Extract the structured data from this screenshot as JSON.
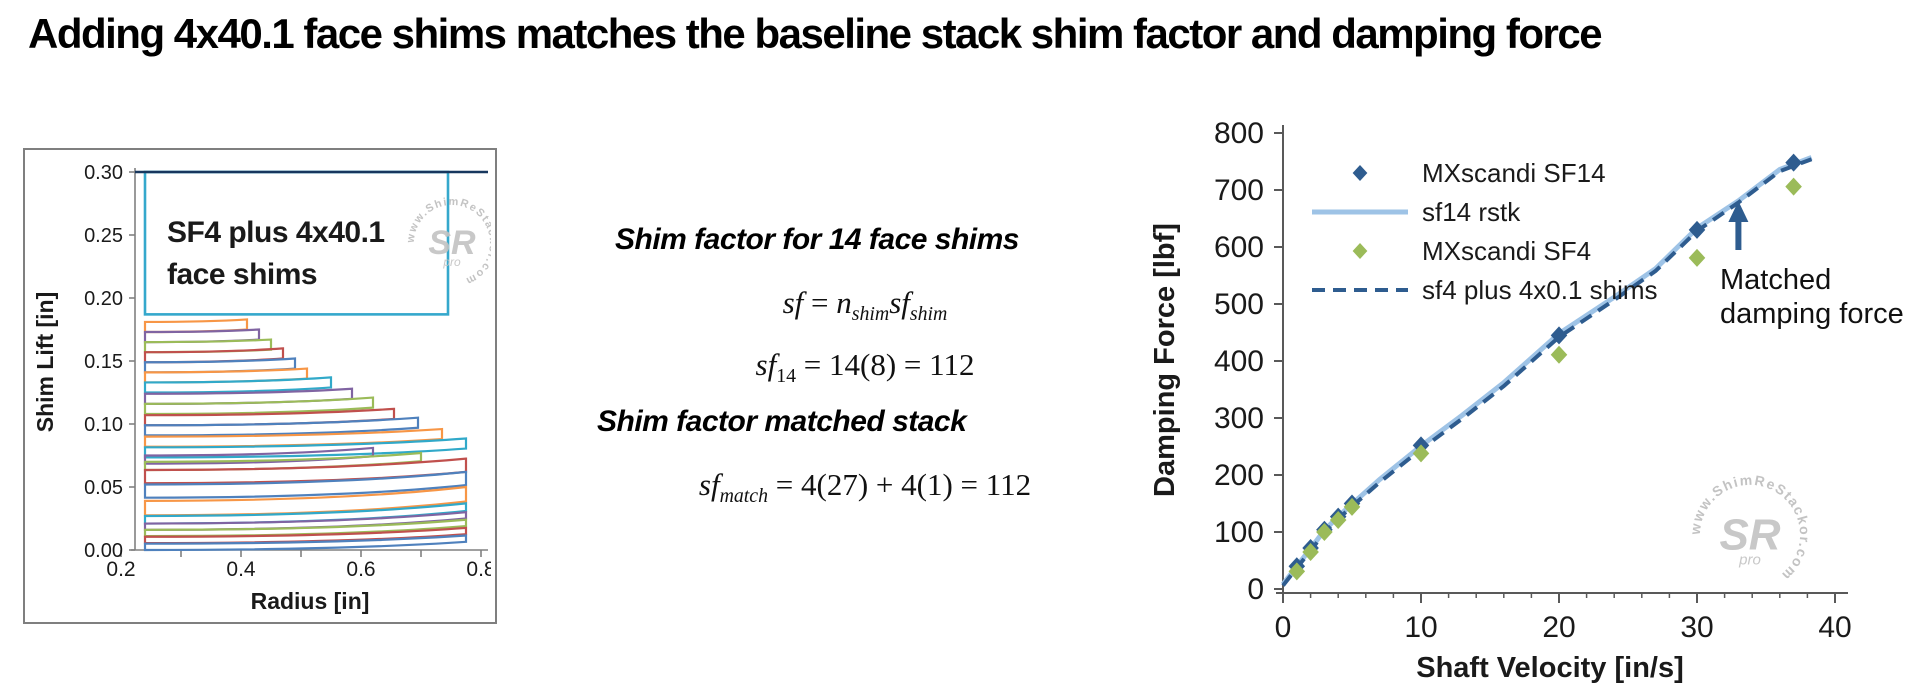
{
  "title": "Adding 4x40.1 face shims matches the baseline stack shim factor and damping force",
  "middle": {
    "heading1": "Shim factor for 14 face shims",
    "heading2": "Shim factor matched stack",
    "formula1": [
      {
        "t": "sf",
        "i": true
      },
      {
        "t": " = "
      },
      {
        "t": "n",
        "i": true
      },
      {
        "t": "shim",
        "i": true,
        "sub": true
      },
      {
        "t": "sf",
        "i": true
      },
      {
        "t": "shim",
        "i": true,
        "sub": true
      }
    ],
    "formula2": [
      {
        "t": "sf",
        "i": true
      },
      {
        "t": "14",
        "sub": true
      },
      {
        "t": " = 14(8) = 112"
      }
    ],
    "formula3": [
      {
        "t": "sf",
        "i": true
      },
      {
        "t": "match",
        "i": true,
        "sub": true
      },
      {
        "t": " = 4(27) + 4(1) = 112"
      }
    ]
  },
  "watermark": {
    "ring_text": "www.ShimReStackor.com",
    "center": "SR",
    "sub": "pro",
    "color": "#bdbdbd"
  },
  "chart_data": [
    {
      "type": "line",
      "title": "",
      "annotation_lines": [
        "SF4 plus 4x40.1",
        "face shims"
      ],
      "xlabel": "Radius [in]",
      "ylabel": "Shim Lift [in]",
      "xlim": [
        0.2,
        0.82
      ],
      "ylim": [
        0.0,
        0.3
      ],
      "xticks": [
        "0.2",
        "0.4",
        "0.6",
        "0.8"
      ],
      "x_minor_step": 0.1,
      "yticks": [
        "0.00",
        "0.05",
        "0.10",
        "0.15",
        "0.20",
        "0.25",
        "0.30"
      ],
      "grid": false,
      "top_line_color": "#17375E",
      "axis_color": "#808080",
      "face_shim_block": {
        "r_in": 0.24,
        "r_out": 0.745,
        "lift_bottom": 0.187,
        "lift_top": 0.3,
        "color": "#35A8CC"
      },
      "shims_note": "each shim outline: inner radius 0.24, base lift, thickness, outer radius, bend (rise at outer edge)",
      "shims": [
        {
          "color": "#F79646",
          "lift": 0.173,
          "t": 0.008,
          "r": 0.41,
          "bend": 0.002
        },
        {
          "color": "#8064A2",
          "lift": 0.165,
          "t": 0.008,
          "r": 0.43,
          "bend": 0.002
        },
        {
          "color": "#9BBB59",
          "lift": 0.157,
          "t": 0.008,
          "r": 0.45,
          "bend": 0.002
        },
        {
          "color": "#C0504D",
          "lift": 0.149,
          "t": 0.008,
          "r": 0.47,
          "bend": 0.003
        },
        {
          "color": "#4F81BD",
          "lift": 0.141,
          "t": 0.008,
          "r": 0.49,
          "bend": 0.003
        },
        {
          "color": "#F79646",
          "lift": 0.133,
          "t": 0.008,
          "r": 0.51,
          "bend": 0.003
        },
        {
          "color": "#31A9C9",
          "lift": 0.125,
          "t": 0.008,
          "r": 0.55,
          "bend": 0.004
        },
        {
          "color": "#8064A2",
          "lift": 0.116,
          "t": 0.008,
          "r": 0.585,
          "bend": 0.004
        },
        {
          "color": "#9BBB59",
          "lift": 0.108,
          "t": 0.008,
          "r": 0.62,
          "bend": 0.005
        },
        {
          "color": "#C0504D",
          "lift": 0.099,
          "t": 0.008,
          "r": 0.655,
          "bend": 0.005
        },
        {
          "color": "#4F81BD",
          "lift": 0.091,
          "t": 0.008,
          "r": 0.695,
          "bend": 0.006
        },
        {
          "color": "#F79646",
          "lift": 0.082,
          "t": 0.008,
          "r": 0.735,
          "bend": 0.006
        },
        {
          "color": "#31A9C9",
          "lift": 0.0735,
          "t": 0.008,
          "r": 0.775,
          "bend": 0.007
        },
        {
          "color": "#8064A2",
          "lift": 0.0685,
          "t": 0.0065,
          "r": 0.62,
          "bend": 0.006
        },
        {
          "color": "#9BBB59",
          "lift": 0.0635,
          "t": 0.0065,
          "r": 0.7,
          "bend": 0.007
        },
        {
          "color": "#C0504D",
          "lift": 0.053,
          "t": 0.0105,
          "r": 0.775,
          "bend": 0.009
        },
        {
          "color": "#4F81BD",
          "lift": 0.0415,
          "t": 0.0105,
          "r": 0.775,
          "bend": 0.01
        },
        {
          "color": "#F79646",
          "lift": 0.0275,
          "t": 0.0115,
          "r": 0.775,
          "bend": 0.011
        },
        {
          "color": "#31A9C9",
          "lift": 0.021,
          "t": 0.006,
          "r": 0.775,
          "bend": 0.01
        },
        {
          "color": "#8064A2",
          "lift": 0.016,
          "t": 0.005,
          "r": 0.775,
          "bend": 0.009
        },
        {
          "color": "#9BBB59",
          "lift": 0.011,
          "t": 0.005,
          "r": 0.775,
          "bend": 0.008
        },
        {
          "color": "#C0504D",
          "lift": 0.0055,
          "t": 0.005,
          "r": 0.775,
          "bend": 0.007
        },
        {
          "color": "#4F81BD",
          "lift": 0.0,
          "t": 0.005,
          "r": 0.775,
          "bend": 0.0065
        }
      ]
    },
    {
      "type": "scatter",
      "xlabel": "Shaft Velocity [in/s]",
      "ylabel": "Damping Force [lbf]",
      "xlim": [
        0,
        40
      ],
      "ylim": [
        0,
        800
      ],
      "xticks": [
        "0",
        "10",
        "20",
        "30",
        "40"
      ],
      "x_minor_step": 2,
      "yticks": [
        "0",
        "100",
        "200",
        "300",
        "400",
        "500",
        "600",
        "700",
        "800"
      ],
      "grid": false,
      "axis_color": "#595959",
      "legend_position": "top-left-inside",
      "series": [
        {
          "name": "MXscandi SF14",
          "type": "scatter",
          "marker": "diamond",
          "color": "#2E5C8F",
          "points": [
            [
              1,
              40
            ],
            [
              2,
              72
            ],
            [
              3,
              104
            ],
            [
              4,
              127
            ],
            [
              5,
              150
            ],
            [
              10,
              252
            ],
            [
              20,
              445
            ],
            [
              30,
              630
            ],
            [
              37,
              748
            ]
          ]
        },
        {
          "name": "sf14 rstk",
          "type": "line",
          "style": "solid",
          "color": "#9EC3E6",
          "width": 5,
          "points": [
            [
              0,
              8
            ],
            [
              1,
              40
            ],
            [
              2,
              71
            ],
            [
              3,
              103
            ],
            [
              4,
              127
            ],
            [
              5,
              149
            ],
            [
              7,
              192
            ],
            [
              10,
              251
            ],
            [
              13,
              305
            ],
            [
              16,
              362
            ],
            [
              20,
              448
            ],
            [
              24,
              512
            ],
            [
              27,
              562
            ],
            [
              30,
              633
            ],
            [
              33,
              681
            ],
            [
              36,
              736
            ],
            [
              38.3,
              757
            ]
          ]
        },
        {
          "name": "MXscandi SF4",
          "type": "scatter",
          "marker": "diamond",
          "color": "#9BBB59",
          "points": [
            [
              1,
              31
            ],
            [
              2,
              65
            ],
            [
              3,
              100
            ],
            [
              4,
              121
            ],
            [
              5,
              144
            ],
            [
              10,
              238
            ],
            [
              20,
              411
            ],
            [
              30,
              581
            ],
            [
              37,
              706
            ]
          ]
        },
        {
          "name": "sf4 plus 4x0.1 shims",
          "type": "line",
          "style": "dashed",
          "color": "#2E5C8F",
          "width": 4,
          "points": [
            [
              0,
              6
            ],
            [
              1,
              37
            ],
            [
              2,
              67
            ],
            [
              3,
              99
            ],
            [
              4,
              123
            ],
            [
              5,
              145
            ],
            [
              7,
              187
            ],
            [
              10,
              245
            ],
            [
              13,
              299
            ],
            [
              16,
              356
            ],
            [
              20,
              442
            ],
            [
              24,
              507
            ],
            [
              27,
              558
            ],
            [
              30,
              628
            ],
            [
              33,
              678
            ],
            [
              36,
              733
            ],
            [
              38.3,
              754
            ]
          ]
        }
      ],
      "legend": [
        {
          "label": "MXscandi SF14",
          "marker": "diamond",
          "color": "#2E5C8F"
        },
        {
          "label": "sf14 rstk",
          "marker": "line",
          "color": "#9EC3E6"
        },
        {
          "label": "MXscandi SF4",
          "marker": "diamond",
          "color": "#9BBB59"
        },
        {
          "label": "sf4 plus 4x0.1 shims",
          "marker": "dashed-line",
          "color": "#2E5C8F"
        }
      ],
      "annotation": {
        "lines": [
          "Matched",
          "damping force"
        ],
        "arrow_x_value": 33,
        "arrow_color": "#2E5C8F"
      }
    }
  ]
}
